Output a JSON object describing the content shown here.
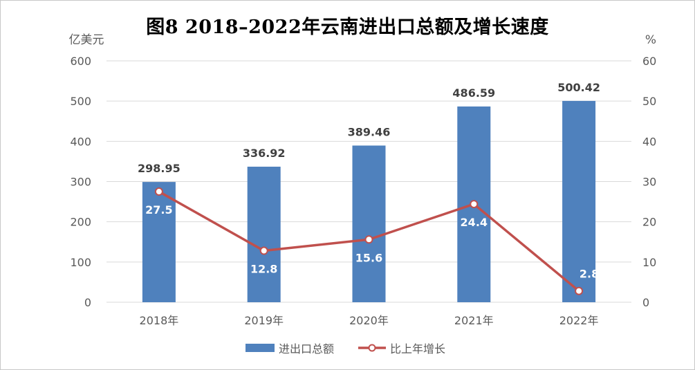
{
  "title": "图8  2018–2022年云南进出口总额及增长速度",
  "colors": {
    "bar": "#4f81bd",
    "line": "#c0504d",
    "grid": "#d9d9d9",
    "axis_text": "#595959",
    "bar_label": "#404040",
    "line_label": "#ffffff"
  },
  "chart_data": {
    "type": "bar",
    "categories": [
      "2018年",
      "2019年",
      "2020年",
      "2021年",
      "2022年"
    ],
    "series": [
      {
        "name": "进出口总额",
        "type": "bar",
        "axis": "left",
        "values": [
          298.95,
          336.92,
          389.46,
          486.59,
          500.42
        ]
      },
      {
        "name": "比上年增长",
        "type": "line",
        "axis": "right",
        "values": [
          27.5,
          12.8,
          15.6,
          24.4,
          2.8
        ]
      }
    ],
    "y_left": {
      "label": "亿美元",
      "lim": [
        0,
        600
      ],
      "ticks": [
        "0",
        "100",
        "200",
        "300",
        "400",
        "500",
        "600"
      ]
    },
    "y_right": {
      "label": "%",
      "lim": [
        0,
        60
      ],
      "ticks": [
        "0",
        "10",
        "20",
        "30",
        "40",
        "50",
        "60"
      ]
    },
    "grid": true,
    "legend": "bottom"
  }
}
